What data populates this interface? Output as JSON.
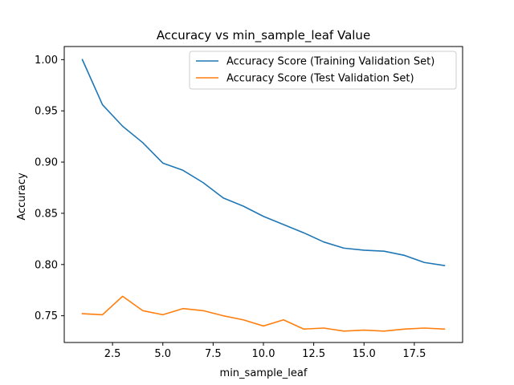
{
  "chart_data": {
    "type": "line",
    "title": "Accuracy vs min_sample_leaf Value",
    "xlabel": "min_sample_leaf",
    "ylabel": "Accuracy",
    "xlim": [
      0.1,
      19.9
    ],
    "ylim": [
      0.7239,
      1.0128
    ],
    "xticks": [
      2.5,
      5.0,
      7.5,
      10.0,
      12.5,
      15.0,
      17.5
    ],
    "xtick_labels": [
      "2.5",
      "5.0",
      "7.5",
      "10.0",
      "12.5",
      "15.0",
      "17.5"
    ],
    "yticks": [
      0.75,
      0.8,
      0.85,
      0.9,
      0.95,
      1.0
    ],
    "ytick_labels": [
      "0.75",
      "0.80",
      "0.85",
      "0.90",
      "0.95",
      "1.00"
    ],
    "grid": false,
    "legend_position": "upper-right",
    "x": [
      1,
      2,
      3,
      4,
      5,
      6,
      7,
      8,
      9,
      10,
      11,
      12,
      13,
      14,
      15,
      16,
      17,
      18,
      19
    ],
    "series": [
      {
        "name": "Accuracy Score (Training Validation Set)",
        "color": "#1f77b4",
        "values": [
          1.0,
          0.956,
          0.935,
          0.919,
          0.899,
          0.892,
          0.88,
          0.865,
          0.857,
          0.847,
          0.839,
          0.831,
          0.822,
          0.816,
          0.814,
          0.813,
          0.809,
          0.802,
          0.799
        ]
      },
      {
        "name": "Accuracy Score (Test Validation Set)",
        "color": "#ff7f0e",
        "values": [
          0.752,
          0.751,
          0.769,
          0.755,
          0.751,
          0.757,
          0.755,
          0.75,
          0.746,
          0.74,
          0.746,
          0.737,
          0.738,
          0.735,
          0.736,
          0.735,
          0.737,
          0.738,
          0.737
        ]
      }
    ]
  }
}
